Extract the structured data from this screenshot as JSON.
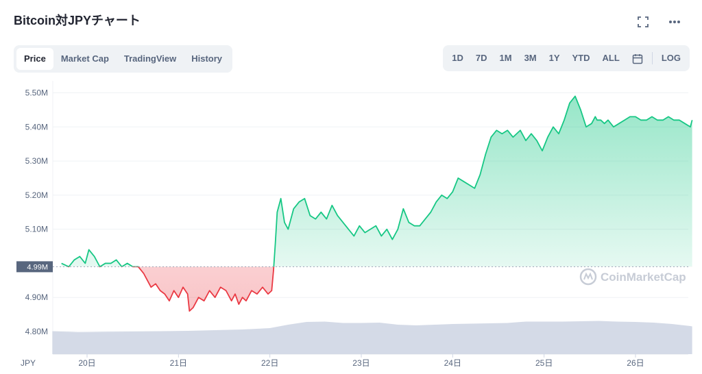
{
  "title": "Bitcoin対JPYチャート",
  "tabs": [
    "Price",
    "Market Cap",
    "TradingView",
    "History"
  ],
  "active_tab": "Price",
  "ranges": [
    "1D",
    "7D",
    "1M",
    "3M",
    "1Y",
    "YTD",
    "ALL"
  ],
  "log_label": "LOG",
  "watermark": "CoinMarketCap",
  "currency_label": "JPY",
  "current_price_tag": "4.99M",
  "colors": {
    "up": "#16c784",
    "down": "#ea3943",
    "volume": "#cfd6e4",
    "tab_bg": "#eff2f5",
    "text_muted": "#58667e",
    "price_tag_bg": "#58667e"
  },
  "chart_data": {
    "type": "line",
    "xlabel": "",
    "ylabel": "",
    "x_ticks": [
      "20日",
      "21日",
      "22日",
      "23日",
      "24日",
      "25日",
      "26日"
    ],
    "y_ticks": [
      "5.50M",
      "5.40M",
      "5.30M",
      "5.20M",
      "5.10M",
      "4.90M",
      "4.80M"
    ],
    "ylim": [
      4.75,
      5.52
    ],
    "baseline": 4.99,
    "grid": true,
    "series": [
      {
        "color_rule": "green above baseline, red below",
        "x": [
          19.72,
          19.8,
          19.86,
          19.92,
          19.98,
          20.02,
          20.08,
          20.14,
          20.2,
          20.26,
          20.32,
          20.38,
          20.44,
          20.5,
          20.56,
          20.62,
          20.66,
          20.7,
          20.75,
          20.8,
          20.85,
          20.9,
          20.95,
          21.0,
          21.05,
          21.1,
          21.12,
          21.16,
          21.22,
          21.28,
          21.34,
          21.4,
          21.46,
          21.52,
          21.58,
          21.62,
          21.66,
          21.7,
          21.74,
          21.8,
          21.86,
          21.92,
          21.98,
          22.02,
          22.04,
          22.06,
          22.08,
          22.12,
          22.16,
          22.2,
          22.26,
          22.32,
          22.38,
          22.44,
          22.5,
          22.56,
          22.62,
          22.68,
          22.74,
          22.8,
          22.86,
          22.92,
          22.98,
          23.04,
          23.1,
          23.16,
          23.22,
          23.28,
          23.34,
          23.4,
          23.46,
          23.52,
          23.58,
          23.64,
          23.7,
          23.76,
          23.82,
          23.88,
          23.94,
          24.0,
          24.06,
          24.12,
          24.18,
          24.24,
          24.3,
          24.36,
          24.42,
          24.48,
          24.54,
          24.6,
          24.66,
          24.7,
          24.74,
          24.8,
          24.86,
          24.92,
          24.98,
          25.04,
          25.1,
          25.16,
          25.22,
          25.28,
          25.34,
          25.4,
          25.46,
          25.52,
          25.56,
          25.58,
          25.62,
          25.66,
          25.7,
          25.76,
          25.82,
          25.88,
          25.94,
          26.0,
          26.06,
          26.12,
          26.18,
          26.24,
          26.3,
          26.36,
          26.42,
          26.48,
          26.54,
          26.6,
          26.62
        ],
        "y": [
          5.0,
          4.99,
          5.01,
          5.02,
          5.0,
          5.04,
          5.02,
          4.99,
          5.0,
          5.0,
          5.01,
          4.99,
          5.0,
          4.99,
          4.99,
          4.97,
          4.95,
          4.93,
          4.94,
          4.92,
          4.91,
          4.89,
          4.92,
          4.9,
          4.93,
          4.91,
          4.86,
          4.87,
          4.9,
          4.89,
          4.92,
          4.9,
          4.93,
          4.92,
          4.89,
          4.91,
          4.88,
          4.9,
          4.89,
          4.92,
          4.91,
          4.93,
          4.91,
          4.92,
          4.98,
          5.06,
          5.15,
          5.19,
          5.12,
          5.1,
          5.16,
          5.18,
          5.19,
          5.14,
          5.13,
          5.15,
          5.13,
          5.17,
          5.14,
          5.12,
          5.1,
          5.08,
          5.11,
          5.09,
          5.1,
          5.11,
          5.08,
          5.1,
          5.07,
          5.1,
          5.16,
          5.12,
          5.11,
          5.11,
          5.13,
          5.15,
          5.18,
          5.2,
          5.19,
          5.21,
          5.25,
          5.24,
          5.23,
          5.22,
          5.26,
          5.32,
          5.37,
          5.39,
          5.38,
          5.39,
          5.37,
          5.38,
          5.39,
          5.36,
          5.38,
          5.36,
          5.33,
          5.37,
          5.4,
          5.38,
          5.42,
          5.47,
          5.49,
          5.45,
          5.4,
          5.41,
          5.43,
          5.42,
          5.42,
          5.41,
          5.42,
          5.4,
          5.41,
          5.42,
          5.43,
          5.43,
          5.42,
          5.42,
          5.43,
          5.42,
          5.42,
          5.43,
          5.42,
          5.42,
          5.41,
          5.4,
          5.42
        ]
      },
      {
        "name": "",
        "type": "area",
        "x": [
          19.62,
          19.9,
          20.2,
          20.5,
          20.8,
          21.1,
          21.4,
          21.7,
          22.0,
          22.2,
          22.4,
          22.6,
          22.8,
          23.0,
          23.2,
          23.4,
          23.6,
          23.8,
          24.0,
          24.2,
          24.4,
          24.6,
          24.8,
          25.0,
          25.2,
          25.4,
          25.6,
          25.8,
          26.0,
          26.2,
          26.4,
          26.6,
          26.62
        ],
        "y": [
          4.801,
          4.798,
          4.799,
          4.8,
          4.801,
          4.802,
          4.804,
          4.806,
          4.81,
          4.82,
          4.828,
          4.829,
          4.825,
          4.825,
          4.826,
          4.82,
          4.818,
          4.82,
          4.822,
          4.823,
          4.824,
          4.825,
          4.829,
          4.829,
          4.829,
          4.83,
          4.831,
          4.829,
          4.828,
          4.826,
          4.822,
          4.816,
          4.815
        ]
      }
    ]
  }
}
